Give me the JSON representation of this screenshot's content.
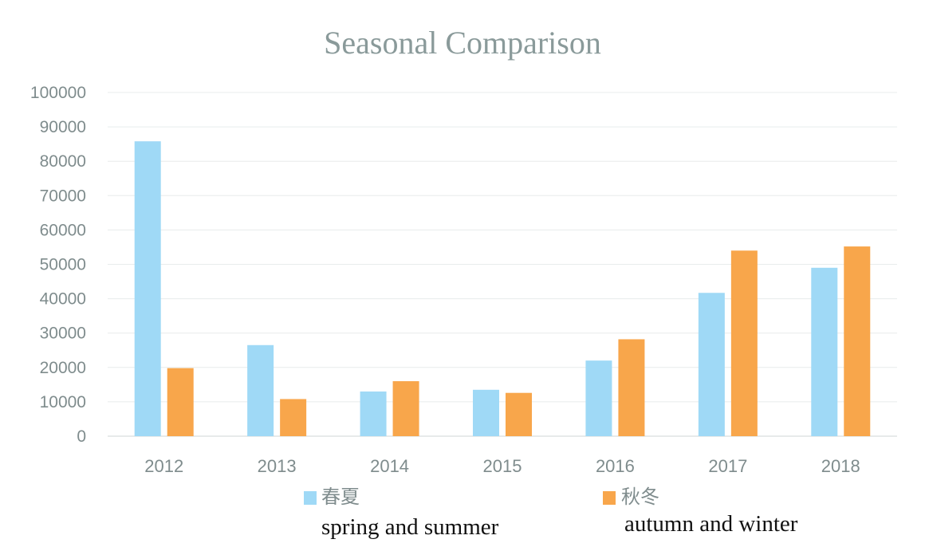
{
  "chart_data": {
    "type": "bar",
    "title": "Seasonal Comparison",
    "categories": [
      "2012",
      "2013",
      "2014",
      "2015",
      "2016",
      "2017",
      "2018"
    ],
    "series": [
      {
        "name": "春夏",
        "name_en": "spring and summer",
        "color": "#9fd9f6",
        "values": [
          85800,
          26500,
          13000,
          13500,
          22000,
          41700,
          49000
        ]
      },
      {
        "name": "秋冬",
        "name_en": "autumn and winter",
        "color": "#f8a64b",
        "values": [
          19800,
          10800,
          16000,
          12600,
          28200,
          54000,
          55200
        ]
      }
    ],
    "y_ticks": [
      "0",
      "10000",
      "20000",
      "30000",
      "40000",
      "50000",
      "60000",
      "70000",
      "80000",
      "90000",
      "100000"
    ],
    "ylim": [
      0,
      100000
    ],
    "grid": true,
    "legend": "bottom"
  }
}
